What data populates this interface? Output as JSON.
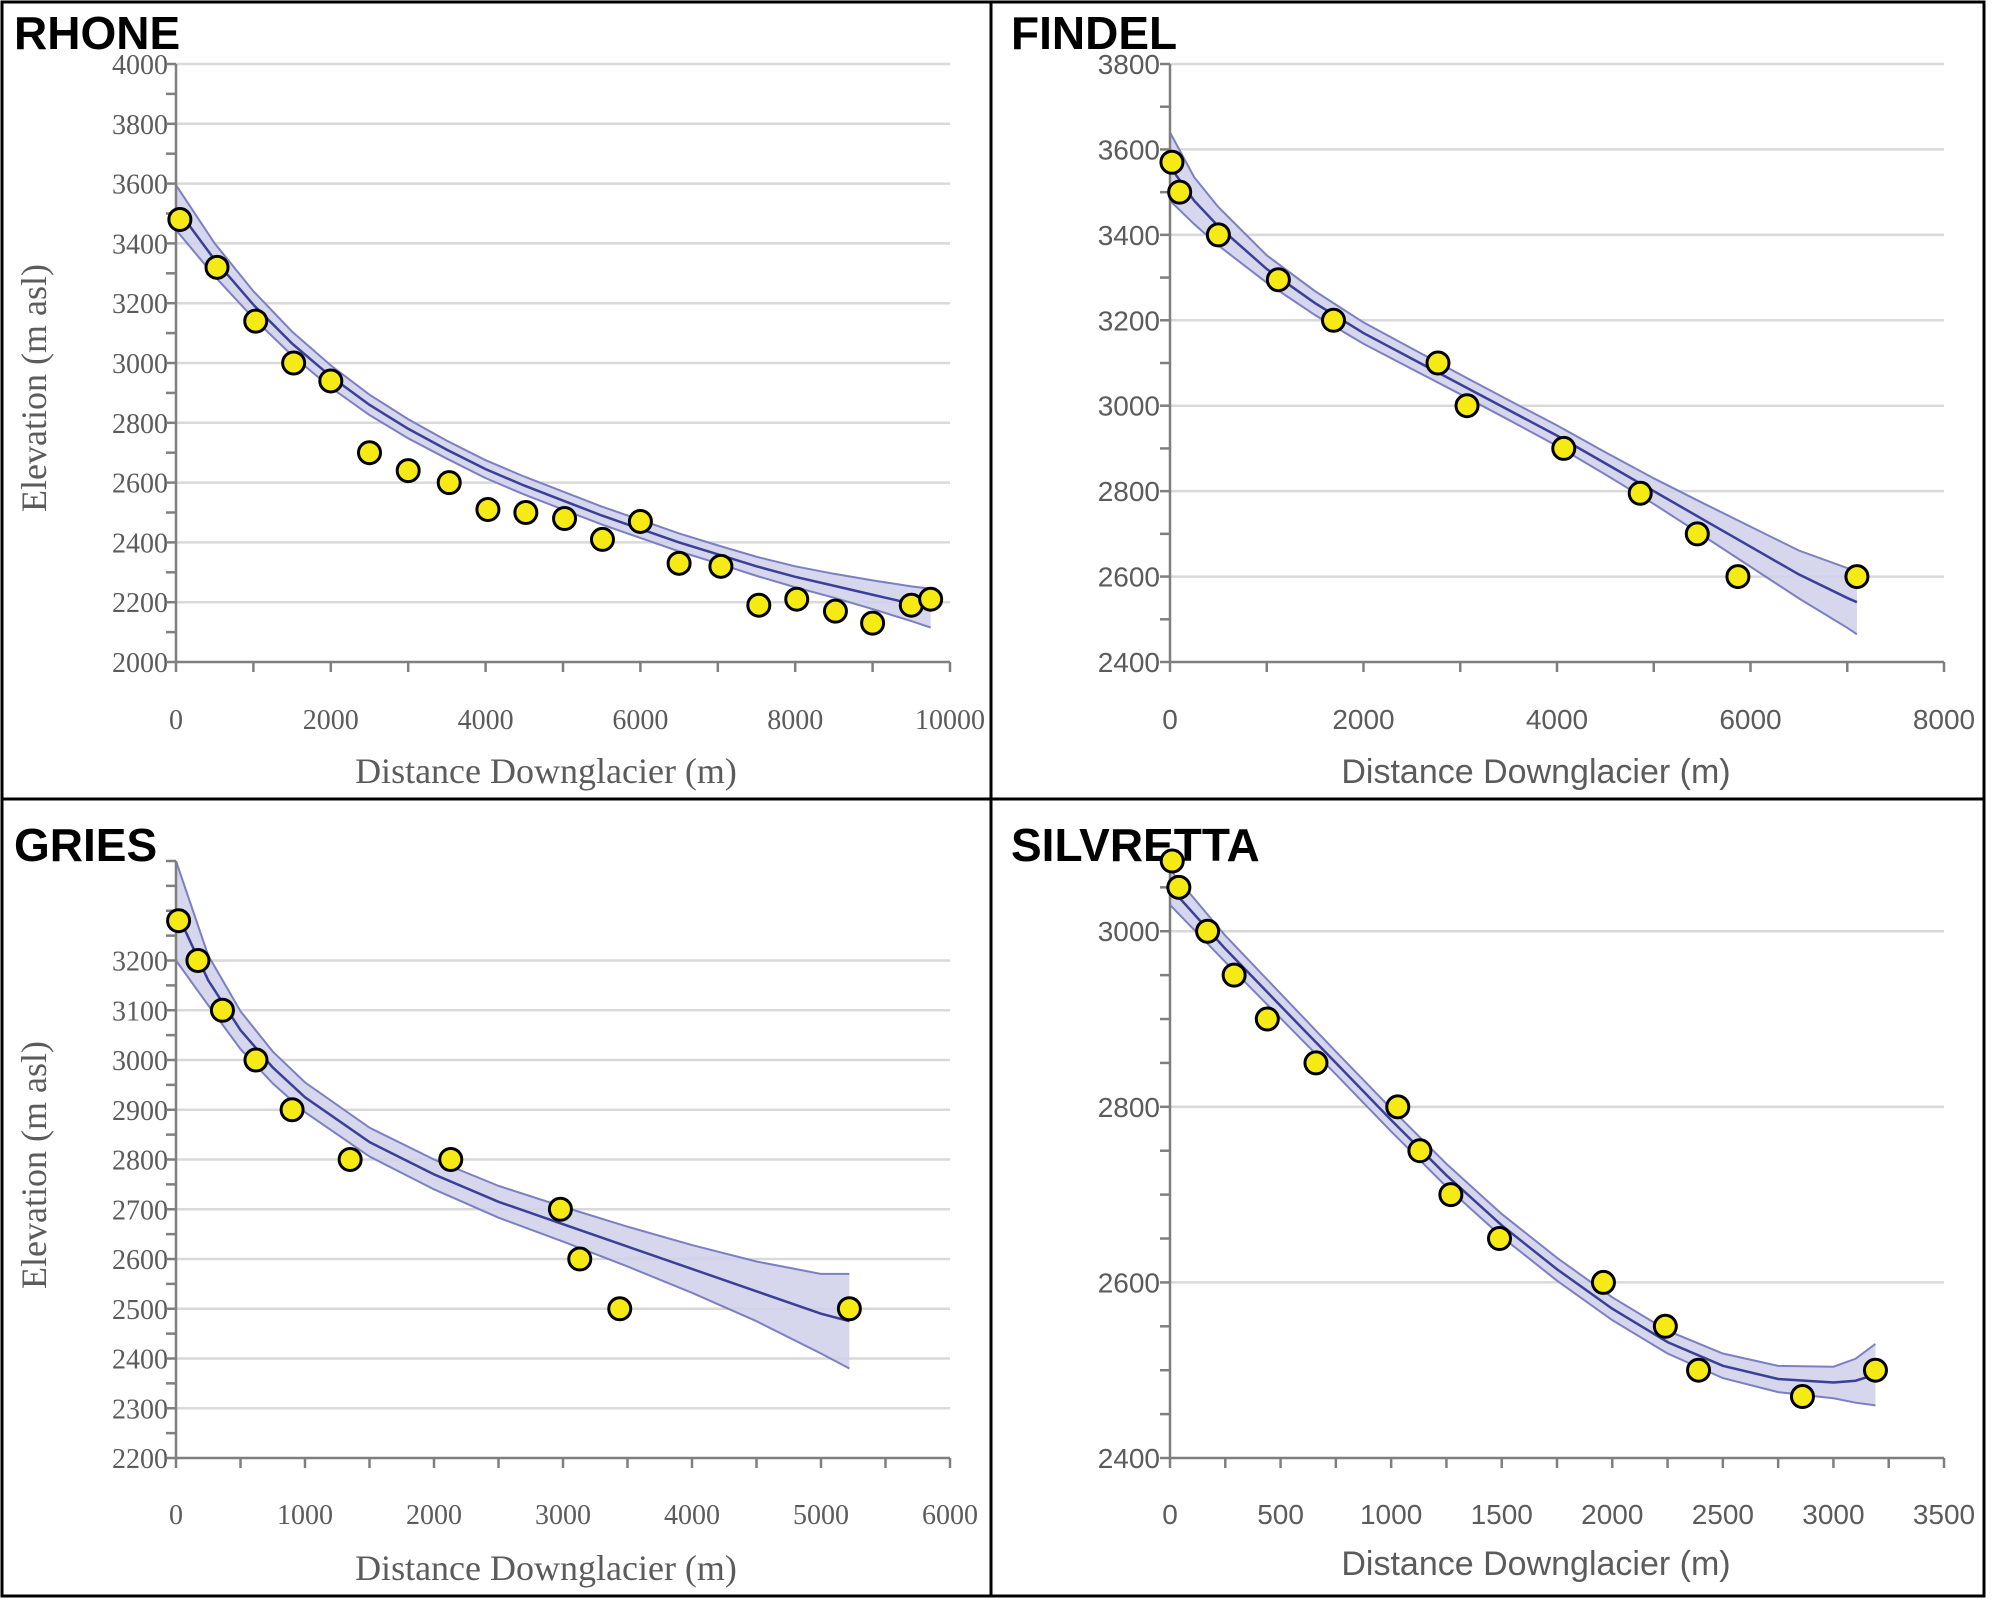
{
  "style": {
    "point_fill": "#f5ea14",
    "point_stroke": "#000000",
    "fit_line_color": "#3a3f99",
    "band_fill": "#cfcfea",
    "band_edge_color": "#7b7fc4"
  },
  "chart_data": [
    {
      "id": "rhone",
      "type": "scatter",
      "title": "RHONE",
      "xlabel": "Distance Downglacier (m)",
      "ylabel": "Elevation (m asl)",
      "xlim": [
        0,
        10000
      ],
      "ylim": [
        2000,
        4000
      ],
      "xticks": [
        0,
        2000,
        4000,
        6000,
        8000,
        10000
      ],
      "xtick_labels": [
        "0",
        "2000",
        "4000",
        "6000",
        "8000",
        "10000"
      ],
      "yticks": [
        2000,
        2200,
        2400,
        2600,
        2800,
        3000,
        3200,
        3400,
        3600,
        3800,
        4000
      ],
      "ytick_labels": [
        "2000",
        "2200",
        "2400",
        "2600",
        "2800",
        "3000",
        "3200",
        "3400",
        "3600",
        "3800",
        "4000"
      ],
      "y_minor_step": 100,
      "x_minor_step": 1000,
      "grid": true,
      "points": [
        [
          50,
          3480
        ],
        [
          530,
          3320
        ],
        [
          1030,
          3140
        ],
        [
          1520,
          3000
        ],
        [
          2000,
          2940
        ],
        [
          2500,
          2700
        ],
        [
          3000,
          2640
        ],
        [
          3530,
          2600
        ],
        [
          4030,
          2510
        ],
        [
          4520,
          2500
        ],
        [
          5020,
          2480
        ],
        [
          5510,
          2410
        ],
        [
          6000,
          2470
        ],
        [
          6500,
          2330
        ],
        [
          7040,
          2320
        ],
        [
          7530,
          2190
        ],
        [
          8020,
          2210
        ],
        [
          8520,
          2170
        ],
        [
          9000,
          2130
        ],
        [
          9500,
          2190
        ],
        [
          9750,
          2210
        ]
      ],
      "fit": [
        [
          0,
          3520
        ],
        [
          500,
          3345
        ],
        [
          1000,
          3195
        ],
        [
          1500,
          3065
        ],
        [
          2000,
          2955
        ],
        [
          2500,
          2860
        ],
        [
          3000,
          2780
        ],
        [
          3500,
          2710
        ],
        [
          4000,
          2645
        ],
        [
          4500,
          2590
        ],
        [
          5000,
          2540
        ],
        [
          5500,
          2490
        ],
        [
          6000,
          2445
        ],
        [
          6500,
          2400
        ],
        [
          7000,
          2360
        ],
        [
          7500,
          2320
        ],
        [
          8000,
          2285
        ],
        [
          8500,
          2255
        ],
        [
          9000,
          2225
        ],
        [
          9500,
          2195
        ],
        [
          9750,
          2180
        ]
      ],
      "band_halfwidth": [
        75,
        55,
        45,
        40,
        37,
        34,
        32,
        30,
        30,
        30,
        30,
        30,
        30,
        30,
        30,
        32,
        35,
        40,
        48,
        58,
        65
      ]
    },
    {
      "id": "findel",
      "type": "scatter",
      "title": "FINDEL",
      "xlabel": "Distance Downglacier (m)",
      "ylabel": "",
      "xlim": [
        0,
        8000
      ],
      "ylim": [
        2400,
        3800
      ],
      "xticks": [
        0,
        2000,
        4000,
        6000,
        8000
      ],
      "xtick_labels": [
        "0",
        "2000",
        "4000",
        "6000",
        "8000"
      ],
      "yticks": [
        2400,
        2600,
        2800,
        3000,
        3200,
        3400,
        3600,
        3800
      ],
      "ytick_labels": [
        "2400",
        "2600",
        "2800",
        "3000",
        "3200",
        "3400",
        "3600",
        "3800"
      ],
      "y_minor_step": 100,
      "x_minor_step": 1000,
      "grid": true,
      "points": [
        [
          20,
          3570
        ],
        [
          100,
          3500
        ],
        [
          500,
          3400
        ],
        [
          1120,
          3295
        ],
        [
          1690,
          3200
        ],
        [
          2770,
          3100
        ],
        [
          3070,
          3000
        ],
        [
          4070,
          2900
        ],
        [
          4860,
          2795
        ],
        [
          5450,
          2700
        ],
        [
          5870,
          2600
        ],
        [
          7100,
          2600
        ]
      ],
      "fit": [
        [
          0,
          3560
        ],
        [
          250,
          3480
        ],
        [
          500,
          3420
        ],
        [
          1000,
          3320
        ],
        [
          1500,
          3240
        ],
        [
          2000,
          3170
        ],
        [
          2500,
          3110
        ],
        [
          3000,
          3050
        ],
        [
          3500,
          2990
        ],
        [
          4000,
          2930
        ],
        [
          4500,
          2865
        ],
        [
          5000,
          2800
        ],
        [
          5500,
          2735
        ],
        [
          6000,
          2670
        ],
        [
          6500,
          2605
        ],
        [
          7000,
          2550
        ],
        [
          7100,
          2540
        ]
      ],
      "band_halfwidth": [
        80,
        55,
        45,
        32,
        28,
        25,
        24,
        23,
        23,
        24,
        26,
        30,
        38,
        47,
        56,
        70,
        75
      ]
    },
    {
      "id": "gries",
      "type": "scatter",
      "title": "GRIES",
      "xlabel": "Distance Downglacier (m)",
      "ylabel": "Elevation (m asl)",
      "xlim": [
        0,
        6000
      ],
      "ylim": [
        2200,
        3400
      ],
      "xticks": [
        0,
        1000,
        2000,
        3000,
        4000,
        5000,
        6000
      ],
      "xtick_labels": [
        "0",
        "1000",
        "2000",
        "3000",
        "4000",
        "5000",
        "6000"
      ],
      "yticks": [
        2200,
        2300,
        2400,
        2500,
        2600,
        2700,
        2800,
        2900,
        3000,
        3100,
        3200
      ],
      "ytick_labels": [
        "2200",
        "2300",
        "2400",
        "2500",
        "2600",
        "2700",
        "2800",
        "2900",
        "3000",
        "3100",
        "3200"
      ],
      "y_minor_step": 50,
      "x_minor_step": 500,
      "grid": true,
      "points": [
        [
          20,
          3280
        ],
        [
          170,
          3200
        ],
        [
          360,
          3100
        ],
        [
          620,
          3000
        ],
        [
          900,
          2900
        ],
        [
          1350,
          2800
        ],
        [
          2130,
          2800
        ],
        [
          2980,
          2700
        ],
        [
          3130,
          2600
        ],
        [
          3440,
          2500
        ],
        [
          5220,
          2500
        ]
      ],
      "fit": [
        [
          0,
          3300
        ],
        [
          250,
          3160
        ],
        [
          500,
          3060
        ],
        [
          750,
          2985
        ],
        [
          1000,
          2925
        ],
        [
          1500,
          2835
        ],
        [
          2000,
          2770
        ],
        [
          2500,
          2715
        ],
        [
          3000,
          2670
        ],
        [
          3500,
          2625
        ],
        [
          4000,
          2580
        ],
        [
          4500,
          2535
        ],
        [
          5000,
          2490
        ],
        [
          5220,
          2475
        ]
      ],
      "band_halfwidth": [
        100,
        50,
        38,
        32,
        30,
        29,
        30,
        32,
        35,
        40,
        48,
        60,
        80,
        95
      ]
    },
    {
      "id": "silvretta",
      "type": "scatter",
      "title": "SILVRETTA",
      "xlabel": "Distance Downglacier (m)",
      "ylabel": "",
      "xlim": [
        0,
        3500
      ],
      "ylim": [
        2400,
        3080
      ],
      "xticks": [
        0,
        500,
        1000,
        1500,
        2000,
        2500,
        3000,
        3500
      ],
      "xtick_labels": [
        "0",
        "500",
        "1000",
        "1500",
        "2000",
        "2500",
        "3000",
        "3500"
      ],
      "yticks": [
        2400,
        2600,
        2800,
        3000
      ],
      "ytick_labels": [
        "2400",
        "2600",
        "2800",
        "3000"
      ],
      "y_minor_step": 50,
      "x_minor_step": 250,
      "grid": true,
      "points": [
        [
          10,
          3080
        ],
        [
          40,
          3050
        ],
        [
          170,
          3000
        ],
        [
          290,
          2950
        ],
        [
          440,
          2900
        ],
        [
          660,
          2850
        ],
        [
          1030,
          2800
        ],
        [
          1130,
          2750
        ],
        [
          1270,
          2700
        ],
        [
          1490,
          2650
        ],
        [
          1960,
          2600
        ],
        [
          2240,
          2550
        ],
        [
          2390,
          2500
        ],
        [
          2860,
          2470
        ],
        [
          3190,
          2500
        ]
      ],
      "fit": [
        [
          0,
          3050
        ],
        [
          250,
          2980
        ],
        [
          500,
          2915
        ],
        [
          750,
          2850
        ],
        [
          1000,
          2785
        ],
        [
          1250,
          2722
        ],
        [
          1500,
          2665
        ],
        [
          1750,
          2615
        ],
        [
          2000,
          2570
        ],
        [
          2250,
          2532
        ],
        [
          2500,
          2505
        ],
        [
          2750,
          2490
        ],
        [
          3000,
          2486
        ],
        [
          3100,
          2488
        ],
        [
          3190,
          2495
        ]
      ],
      "band_halfwidth": [
        20,
        15,
        14,
        13,
        13,
        13,
        13,
        13,
        13,
        13,
        14,
        15,
        18,
        25,
        35
      ]
    }
  ]
}
